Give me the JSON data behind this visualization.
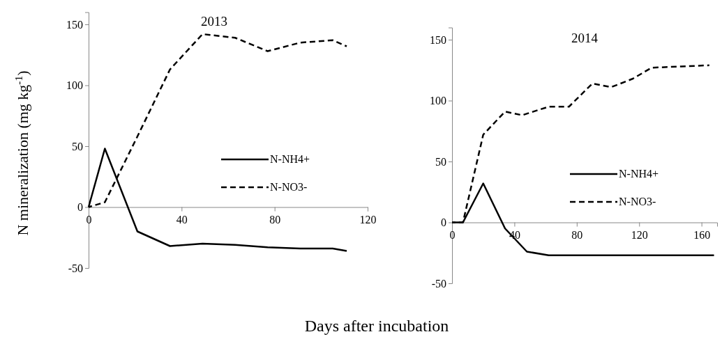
{
  "chart_data": [
    {
      "type": "line",
      "title": "2013",
      "ylabel": "N mineralization  (mg kg$^{-1}$)",
      "xlim": [
        0,
        120
      ],
      "xticks": [
        0,
        40,
        80,
        120
      ],
      "ylim": [
        -50,
        160
      ],
      "yticks": [
        -50,
        0,
        50,
        100,
        150
      ],
      "legend": "center right",
      "grid": false,
      "series": [
        {
          "name": "N-NH4+",
          "color": "#000000",
          "line_style": "solid",
          "x": [
            0,
            7,
            21,
            35,
            49,
            63,
            77,
            91,
            105,
            111
          ],
          "values": [
            0,
            48,
            -20,
            -32,
            -30,
            -31,
            -33,
            -34,
            -34,
            -36
          ]
        },
        {
          "name": "N-NO3-",
          "color": "#000000",
          "line_style": "dashed",
          "x": [
            0,
            7,
            21,
            35,
            49,
            63,
            77,
            91,
            105,
            111
          ],
          "values": [
            0,
            4,
            58,
            113,
            142,
            139,
            128,
            135,
            137,
            132
          ]
        }
      ]
    },
    {
      "type": "line",
      "title": "2014",
      "xlabel": "Days after incubation",
      "xlim": [
        0,
        170
      ],
      "xticks": [
        0,
        40,
        80,
        120,
        160
      ],
      "ylim": [
        -50,
        160
      ],
      "yticks": [
        -50,
        0,
        50,
        100,
        150
      ],
      "legend": "center right",
      "grid": false,
      "series": [
        {
          "name": "N-NH4+",
          "color": "#000000",
          "line_style": "solid",
          "x": [
            0,
            7,
            20,
            34,
            48,
            62,
            76,
            90,
            104,
            118,
            132,
            146,
            168
          ],
          "values": [
            0,
            0,
            32,
            -5,
            -24,
            -27,
            -27,
            -27,
            -27,
            -27,
            -27,
            -27,
            -27
          ]
        },
        {
          "name": "N-NO3-",
          "color": "#000000",
          "line_style": "dashed",
          "x": [
            0,
            7,
            20,
            34,
            45,
            62,
            75,
            90,
            102,
            116,
            128,
            147,
            165
          ],
          "values": [
            0,
            0,
            72,
            91,
            88,
            95,
            95,
            114,
            111,
            118,
            127,
            128,
            129
          ]
        }
      ]
    }
  ]
}
